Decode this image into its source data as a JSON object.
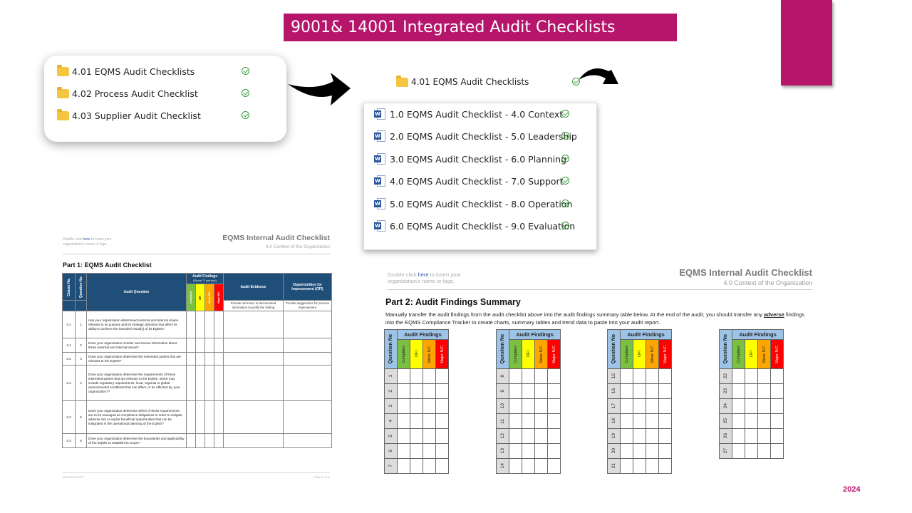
{
  "title": "9001& 14001 Integrated Audit Checklists",
  "year": "2024",
  "colors": {
    "accent": "#b5166b",
    "header_blue": "#1f4e79",
    "light_blue": "#9dc3e6",
    "compliant": "#7ac143",
    "ofi": "#ffff00",
    "minor": "#ffa500",
    "major": "#ff0000"
  },
  "folders": [
    {
      "label": "4.01 EQMS Audit Checklists",
      "icon": "folder-icon",
      "status": "synced-check-icon"
    },
    {
      "label": "4.02 Process Audit Checklist",
      "icon": "folder-icon",
      "status": "synced-check-icon"
    },
    {
      "label": "4.03 Supplier Audit Checklist",
      "icon": "folder-icon",
      "status": "synced-check-icon"
    }
  ],
  "open_folder": {
    "label": "4.01 EQMS Audit Checklists",
    "icon": "folder-icon"
  },
  "files": [
    {
      "label": "1.0 EQMS Audit Checklist - 4.0 Context",
      "icon": "word-doc-icon"
    },
    {
      "label": "2.0 EQMS Audit Checklist - 5.0 Leadership",
      "icon": "word-doc-icon"
    },
    {
      "label": "3.0 EQMS Audit Checklist - 6.0 Planning",
      "icon": "word-doc-icon"
    },
    {
      "label": "4.0 EQMS Audit Checklist - 7.0 Support",
      "icon": "word-doc-icon"
    },
    {
      "label": "5.0 EQMS Audit Checklist - 8.0 Operation",
      "icon": "word-doc-icon"
    },
    {
      "label": "6.0 EQMS Audit Checklist - 9.0 Evaluation",
      "icon": "word-doc-icon"
    }
  ],
  "doc1": {
    "hint_pre": "Double click ",
    "hint_link": "here",
    "hint_post": " to insert your organization's name or logo.",
    "title": "EQMS Internal Audit Checklist",
    "subtitle": "4.0 Context of the Organization",
    "part": "Part 1: EQMS Audit Checklist",
    "headers": {
      "clause": "Clause No.",
      "question_no": "Question No.",
      "question": "Audit Question",
      "findings": "Audit Findings",
      "findings_sub": "(Score \"I\" per box)",
      "evidence": "Audit Evidence",
      "evidence_sub": "Provide reference to documented information to justify the finding",
      "ofi": "Opportunities for Improvement (OFI)",
      "ofi_sub": "Provide suggestions for process improvement",
      "compliant": "Compliant",
      "ofi_short": "OFI",
      "minor": "Minor N/C",
      "major": "Major N/C"
    },
    "rows": [
      {
        "clause": "4.1",
        "no": "1",
        "q": "Has your organization determined external and internal issues relevant to its purpose and its strategic direction that affect its ability to achieve the intended result(s) of its EQMS?"
      },
      {
        "clause": "4.1",
        "no": "2",
        "q": "Does your organization monitor and review information about these external and internal issues?"
      },
      {
        "clause": "4.2",
        "no": "3",
        "q": "Does your organization determine the interested parties that are relevant to the EQMS?"
      },
      {
        "clause": "4.2",
        "no": "4",
        "q": "Does your organisation determine the requirements of these interested parties that are relevant to the EQMS, which may include regulatory requirements, local, regional or global environmental conditions that can affect, or be affected by, your organization??"
      },
      {
        "clause": "4.2",
        "no": "5",
        "q": "Does your organization determine which of those requirements are to be managed as compliance obligations in order to mitigate adverse risk or exploit beneficial opportunities that can be integrated in the operational planning of the EQMS?"
      },
      {
        "clause": "4.3",
        "no": "6",
        "q": "Does your organization determine the boundaries and applicability of the EQMS to establish its scope?"
      }
    ],
    "footer_left": "Document Ref:",
    "footer_right": "Page 2 of 6"
  },
  "doc2": {
    "hint_pre": "Double click ",
    "hint_link": "here",
    "hint_post": " to insert your organization's name or logo.",
    "title": "EQMS Internal Audit Checklist",
    "subtitle": "4.0 Context of the Organization",
    "part": "Part 2: Audit Findings Summary",
    "para_a": "Manually transfer the audit findings from the audit checklist above into the audit findings summary table below. At the end of the audit, you should transfer any ",
    "para_adverse": "adverse",
    "para_b": " findings into the EQMS Compliance Tracker to create charts, summary tables and trend data to paste into your audit report.",
    "table_header": "Audit Findings",
    "question_no": "Question No",
    "cats": [
      "Compliant",
      "OFI",
      "Minor N/C",
      "Major N/C"
    ],
    "groups": [
      [
        "1",
        "2",
        "3",
        "4",
        "5",
        "6",
        "7"
      ],
      [
        "8",
        "9",
        "10",
        "11",
        "12",
        "13",
        "14"
      ],
      [
        "15",
        "16",
        "17",
        "18",
        "19",
        "20",
        "21"
      ],
      [
        "22",
        "23",
        "24",
        "25",
        "26",
        "27"
      ]
    ]
  }
}
